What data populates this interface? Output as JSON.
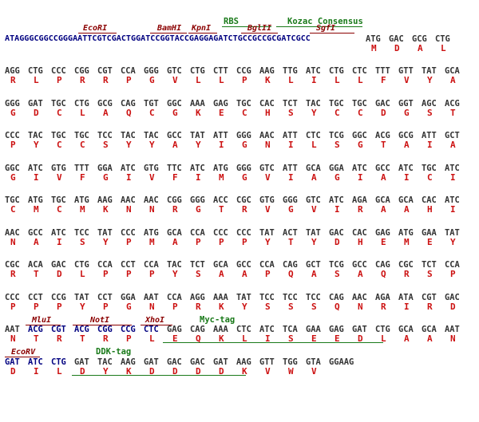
{
  "colors": {
    "nucleotide": "#333333",
    "vector_nucleotide": "#000080",
    "amino_acid": "#cc1111",
    "enzyme": "#8b0000",
    "feature": "#1a7a1a"
  },
  "header": {
    "line": "ATAGGGCGGCCGGGAATTCGTCGACTGGATCCGGTACCGAGGAGATCTGCCGCCGCGATCGCC",
    "trailing_codons": [
      "ATG",
      "GAC",
      "GCG",
      "CTG"
    ],
    "trailing_aas": [
      "M",
      "D",
      "A",
      "L"
    ],
    "enzymes": [
      "EcoRI",
      "BamHI",
      "KpnI",
      "BglII",
      "SgfI"
    ],
    "features": [
      "RBS",
      "Kozac Consensus"
    ]
  },
  "rows": [
    {
      "codons": [
        "AGG",
        "CTG",
        "CCC",
        "CGG",
        "CGT",
        "CCA",
        "GGG",
        "GTC",
        "CTG",
        "CTT",
        "CCG",
        "AAG",
        "TTG",
        "ATC",
        "CTG",
        "CTC",
        "TTT",
        "GTT",
        "TAT",
        "GCA"
      ],
      "aas": [
        "R",
        "L",
        "P",
        "R",
        "R",
        "P",
        "G",
        "V",
        "L",
        "L",
        "P",
        "K",
        "L",
        "I",
        "L",
        "L",
        "F",
        "V",
        "Y",
        "A"
      ]
    },
    {
      "codons": [
        "GGG",
        "GAT",
        "TGC",
        "CTG",
        "GCG",
        "CAG",
        "TGT",
        "GGC",
        "AAA",
        "GAG",
        "TGC",
        "CAC",
        "TCT",
        "TAC",
        "TGC",
        "TGC",
        "GAC",
        "GGT",
        "AGC",
        "ACG"
      ],
      "aas": [
        "G",
        "D",
        "C",
        "L",
        "A",
        "Q",
        "C",
        "G",
        "K",
        "E",
        "C",
        "H",
        "S",
        "Y",
        "C",
        "C",
        "D",
        "G",
        "S",
        "T"
      ]
    },
    {
      "codons": [
        "CCC",
        "TAC",
        "TGC",
        "TGC",
        "TCC",
        "TAC",
        "TAC",
        "GCC",
        "TAT",
        "ATT",
        "GGG",
        "AAC",
        "ATT",
        "CTC",
        "TCG",
        "GGC",
        "ACG",
        "GCG",
        "ATT",
        "GCT"
      ],
      "aas": [
        "P",
        "Y",
        "C",
        "C",
        "S",
        "Y",
        "Y",
        "A",
        "Y",
        "I",
        "G",
        "N",
        "I",
        "L",
        "S",
        "G",
        "T",
        "A",
        "I",
        "A"
      ]
    },
    {
      "codons": [
        "GGC",
        "ATC",
        "GTG",
        "TTT",
        "GGA",
        "ATC",
        "GTG",
        "TTC",
        "ATC",
        "ATG",
        "GGG",
        "GTC",
        "ATT",
        "GCA",
        "GGA",
        "ATC",
        "GCC",
        "ATC",
        "TGC",
        "ATC"
      ],
      "aas": [
        "G",
        "I",
        "V",
        "F",
        "G",
        "I",
        "V",
        "F",
        "I",
        "M",
        "G",
        "V",
        "I",
        "A",
        "G",
        "I",
        "A",
        "I",
        "C",
        "I"
      ]
    },
    {
      "codons": [
        "TGC",
        "ATG",
        "TGC",
        "ATG",
        "AAG",
        "AAC",
        "AAC",
        "CGG",
        "GGG",
        "ACC",
        "CGC",
        "GTG",
        "GGG",
        "GTC",
        "ATC",
        "AGA",
        "GCA",
        "GCA",
        "CAC",
        "ATC"
      ],
      "aas": [
        "C",
        "M",
        "C",
        "M",
        "K",
        "N",
        "N",
        "R",
        "G",
        "T",
        "R",
        "V",
        "G",
        "V",
        "I",
        "R",
        "A",
        "A",
        "H",
        "I"
      ]
    },
    {
      "codons": [
        "AAC",
        "GCC",
        "ATC",
        "TCC",
        "TAT",
        "CCC",
        "ATG",
        "GCA",
        "CCA",
        "CCC",
        "CCC",
        "TAT",
        "ACT",
        "TAT",
        "GAC",
        "CAC",
        "GAG",
        "ATG",
        "GAA",
        "TAT"
      ],
      "aas": [
        "N",
        "A",
        "I",
        "S",
        "Y",
        "P",
        "M",
        "A",
        "P",
        "P",
        "P",
        "Y",
        "T",
        "Y",
        "D",
        "H",
        "E",
        "M",
        "E",
        "Y"
      ]
    },
    {
      "codons": [
        "CGC",
        "ACA",
        "GAC",
        "CTG",
        "CCA",
        "CCT",
        "CCA",
        "TAC",
        "TCT",
        "GCA",
        "GCC",
        "CCA",
        "CAG",
        "GCT",
        "TCG",
        "GCC",
        "CAG",
        "CGC",
        "TCT",
        "CCA"
      ],
      "aas": [
        "R",
        "T",
        "D",
        "L",
        "P",
        "P",
        "P",
        "Y",
        "S",
        "A",
        "A",
        "P",
        "Q",
        "A",
        "S",
        "A",
        "Q",
        "R",
        "S",
        "P"
      ]
    },
    {
      "codons": [
        "CCC",
        "CCT",
        "CCG",
        "TAT",
        "CCT",
        "GGA",
        "AAT",
        "CCA",
        "AGG",
        "AAA",
        "TAT",
        "TCC",
        "TCC",
        "TCC",
        "CAG",
        "AAC",
        "AGA",
        "ATA",
        "CGT",
        "GAC"
      ],
      "aas": [
        "P",
        "P",
        "P",
        "Y",
        "P",
        "G",
        "N",
        "P",
        "R",
        "K",
        "Y",
        "S",
        "S",
        "S",
        "Q",
        "N",
        "R",
        "I",
        "R",
        "D"
      ]
    },
    {
      "codons": [
        "AAT",
        "ACG",
        "CGT",
        "ACG",
        "CGG",
        "CCG",
        "CTC",
        "GAG",
        "CAG",
        "AAA",
        "CTC",
        "ATC",
        "TCA",
        "GAA",
        "GAG",
        "GAT",
        "CTG",
        "GCA",
        "GCA",
        "AAT"
      ],
      "aas": [
        "N",
        "T",
        "R",
        "T",
        "R",
        "P",
        "L",
        "E",
        "Q",
        "K",
        "L",
        "I",
        "S",
        "E",
        "E",
        "D",
        "L",
        "A",
        "A",
        "N"
      ],
      "enzymes": [
        "MluI",
        "NotI",
        "XhoI"
      ],
      "features": [
        "Myc-tag"
      ]
    },
    {
      "codons": [
        "GAT",
        "ATC",
        "CTG",
        "GAT",
        "TAC",
        "AAG",
        "GAT",
        "GAC",
        "GAC",
        "GAT",
        "AAG",
        "GTT",
        "TGG",
        "GTA",
        "GGAAG"
      ],
      "aas": [
        "D",
        "I",
        "L",
        "D",
        "Y",
        "K",
        "D",
        "D",
        "D",
        "D",
        "K",
        "V",
        "W",
        "V",
        ""
      ],
      "enzymes": [
        "EcoRV"
      ],
      "features": [
        "DDK-tag"
      ]
    }
  ]
}
